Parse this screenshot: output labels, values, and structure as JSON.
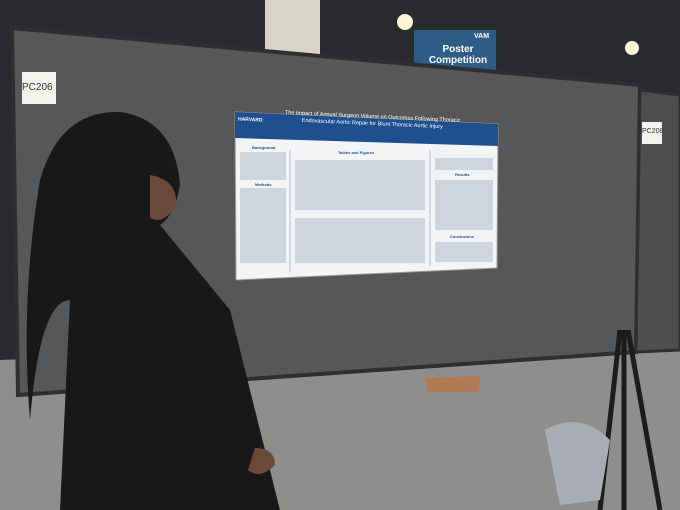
{
  "signs": {
    "booth_left": "PC206",
    "booth_right": "PC208",
    "banner_brand": "VAM",
    "banner_title": "Poster Competition"
  },
  "poster": {
    "logo": "HARVARD",
    "title": "The Impact of Annual Surgeon Volume on Outcomes Following Thoracic Endovascular Aortic Repair for Blunt Thoracic Aortic Injury",
    "sections": [
      "Background",
      "Methods",
      "Tables and Figures",
      "Results",
      "Conclusions"
    ]
  }
}
